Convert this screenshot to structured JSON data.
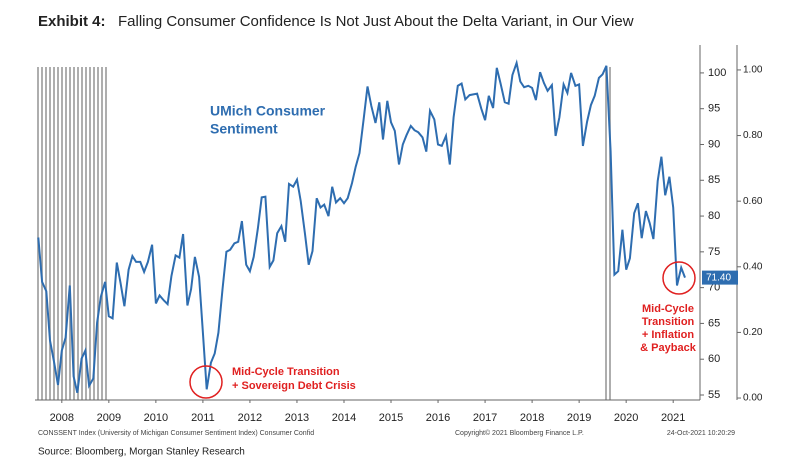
{
  "chart_data": {
    "type": "line",
    "title_label": "Exhibit 4:",
    "title": "Falling Consumer Confidence Is Not Just About the Delta Variant, in Our View",
    "series": [
      {
        "name": "UMich Consumer Sentiment",
        "color": "#2e6db0",
        "x": [
          2008.0,
          2008.08,
          2008.17,
          2008.25,
          2008.33,
          2008.42,
          2008.5,
          2008.58,
          2008.67,
          2008.75,
          2008.83,
          2008.92,
          2009.0,
          2009.08,
          2009.17,
          2009.25,
          2009.33,
          2009.42,
          2009.5,
          2009.58,
          2009.67,
          2009.75,
          2009.83,
          2009.92,
          2010.0,
          2010.08,
          2010.17,
          2010.25,
          2010.33,
          2010.42,
          2010.5,
          2010.58,
          2010.67,
          2010.75,
          2010.83,
          2010.92,
          2011.0,
          2011.08,
          2011.17,
          2011.25,
          2011.33,
          2011.42,
          2011.5,
          2011.58,
          2011.67,
          2011.75,
          2011.83,
          2011.92,
          2012.0,
          2012.08,
          2012.17,
          2012.25,
          2012.33,
          2012.42,
          2012.5,
          2012.58,
          2012.67,
          2012.75,
          2012.83,
          2012.92,
          2013.0,
          2013.08,
          2013.17,
          2013.25,
          2013.33,
          2013.42,
          2013.5,
          2013.58,
          2013.67,
          2013.75,
          2013.83,
          2013.92,
          2014.0,
          2014.08,
          2014.17,
          2014.25,
          2014.33,
          2014.42,
          2014.5,
          2014.58,
          2014.67,
          2014.75,
          2014.83,
          2014.92,
          2015.0,
          2015.08,
          2015.17,
          2015.25,
          2015.33,
          2015.42,
          2015.5,
          2015.58,
          2015.67,
          2015.75,
          2015.83,
          2015.92,
          2016.0,
          2016.08,
          2016.17,
          2016.25,
          2016.33,
          2016.42,
          2016.5,
          2016.58,
          2016.67,
          2016.75,
          2016.83,
          2016.92,
          2017.0,
          2017.08,
          2017.17,
          2017.25,
          2017.33,
          2017.42,
          2017.5,
          2017.58,
          2017.67,
          2017.75,
          2017.83,
          2017.92,
          2018.0,
          2018.08,
          2018.17,
          2018.25,
          2018.33,
          2018.42,
          2018.5,
          2018.58,
          2018.67,
          2018.75,
          2018.83,
          2018.92,
          2019.0,
          2019.08,
          2019.17,
          2019.25,
          2019.33,
          2019.42,
          2019.5,
          2019.58,
          2019.67,
          2019.75,
          2019.83,
          2019.92,
          2020.0,
          2020.08,
          2020.17,
          2020.25,
          2020.33,
          2020.42,
          2020.5,
          2020.58,
          2020.67,
          2020.75,
          2020.83,
          2020.92,
          2021.0,
          2021.08,
          2021.17,
          2021.25,
          2021.33,
          2021.42,
          2021.5,
          2021.58,
          2021.67,
          2021.75
        ],
        "values": [
          77,
          70.8,
          69.5,
          62.6,
          59.8,
          56.4,
          61.2,
          63.0,
          70.3,
          57.6,
          55.3,
          60.1,
          61.2,
          56.3,
          57.3,
          65.1,
          68.7,
          70.8,
          66.0,
          65.7,
          73.5,
          70.6,
          67.4,
          72.5,
          74.4,
          73.6,
          73.6,
          72.2,
          73.6,
          76.0,
          67.8,
          68.9,
          68.2,
          67.7,
          71.6,
          74.5,
          74.2,
          77.5,
          67.5,
          69.8,
          74.3,
          71.5,
          63.7,
          55.8,
          59.5,
          60.8,
          63.7,
          69.9,
          75.0,
          75.3,
          76.2,
          76.4,
          79.3,
          73.2,
          72.3,
          74.3,
          78.3,
          82.6,
          82.7,
          72.9,
          73.8,
          77.6,
          78.6,
          76.4,
          84.5,
          84.1,
          85.1,
          82.1,
          77.5,
          73.2,
          75.1,
          82.5,
          81.2,
          81.6,
          80.0,
          84.1,
          81.9,
          82.5,
          81.8,
          82.5,
          84.6,
          86.9,
          88.8,
          93.6,
          98.1,
          95.4,
          93.0,
          95.9,
          90.7,
          96.1,
          93.1,
          91.9,
          87.2,
          90.0,
          91.3,
          92.6,
          92.0,
          91.7,
          91.0,
          89.0,
          94.7,
          93.5,
          90.0,
          89.8,
          91.2,
          87.2,
          93.8,
          98.2,
          98.5,
          96.3,
          96.9,
          97.0,
          97.1,
          95.0,
          93.4,
          96.8,
          95.1,
          100.7,
          98.5,
          95.9,
          95.7,
          99.7,
          101.4,
          98.8,
          98.0,
          98.2,
          97.9,
          96.2,
          100.1,
          98.6,
          97.5,
          98.3,
          91.2,
          93.8,
          98.4,
          97.2,
          100.0,
          98.2,
          98.4,
          89.8,
          93.2,
          95.5,
          96.8,
          99.3,
          99.8,
          101.0,
          89.1,
          71.8,
          72.3,
          78.1,
          72.5,
          74.1,
          80.4,
          81.8,
          76.9,
          80.7,
          79.0,
          76.8,
          84.9,
          88.3,
          82.9,
          85.5,
          81.2,
          70.3,
          72.8,
          71.4
        ],
        "last_label": "71.40"
      }
    ],
    "recessions": [
      [
        2007.95,
        2009.5
      ],
      [
        2020.05,
        2020.22
      ]
    ],
    "xlim": [
      2007.93,
      2022.07
    ],
    "xticks": [
      {
        "value": 2008.5,
        "label": "2008"
      },
      {
        "value": 2009.5,
        "label": "2009"
      },
      {
        "value": 2010.5,
        "label": "2010"
      },
      {
        "value": 2011.5,
        "label": "2011"
      },
      {
        "value": 2012.5,
        "label": "2012"
      },
      {
        "value": 2013.5,
        "label": "2013"
      },
      {
        "value": 2014.5,
        "label": "2014"
      },
      {
        "value": 2015.5,
        "label": "2015"
      },
      {
        "value": 2016.5,
        "label": "2016"
      },
      {
        "value": 2017.5,
        "label": "2017"
      },
      {
        "value": 2018.5,
        "label": "2018"
      },
      {
        "value": 2019.5,
        "label": "2019"
      },
      {
        "value": 2020.5,
        "label": "2020"
      },
      {
        "value": 2021.5,
        "label": "2021"
      }
    ],
    "ylim": [
      54.3,
      103.9
    ],
    "yticks": [
      55,
      60,
      65,
      70,
      75,
      80,
      85,
      90,
      95,
      100
    ],
    "y2lim": [
      -0.006,
      1.076
    ],
    "y2ticks": [
      {
        "value": 0,
        "label": "0.00"
      },
      {
        "value": 0.2,
        "label": "0.20"
      },
      {
        "value": 0.4,
        "label": "0.40"
      },
      {
        "value": 0.6,
        "label": "0.60"
      },
      {
        "value": 0.8,
        "label": "0.80"
      },
      {
        "value": 1,
        "label": "1.00"
      }
    ],
    "annotations": {
      "series_label": [
        "UMich Consumer",
        "Sentiment"
      ],
      "event_2011": [
        "Mid-Cycle Transition",
        "+ Sovereign Debt Crisis"
      ],
      "event_2021": [
        "Mid-Cycle",
        "Transition",
        "+ Inflation",
        "& Payback"
      ]
    },
    "footer_left": "CONSSENT Index (University of Michigan Consumer Sentiment Index) Consumer Confid",
    "footer_mid": "Copyright© 2021 Bloomberg Finance L.P.",
    "footer_right": "24-Oct-2021 10:20:29",
    "source": "Source: Bloomberg, Morgan Stanley Research"
  }
}
